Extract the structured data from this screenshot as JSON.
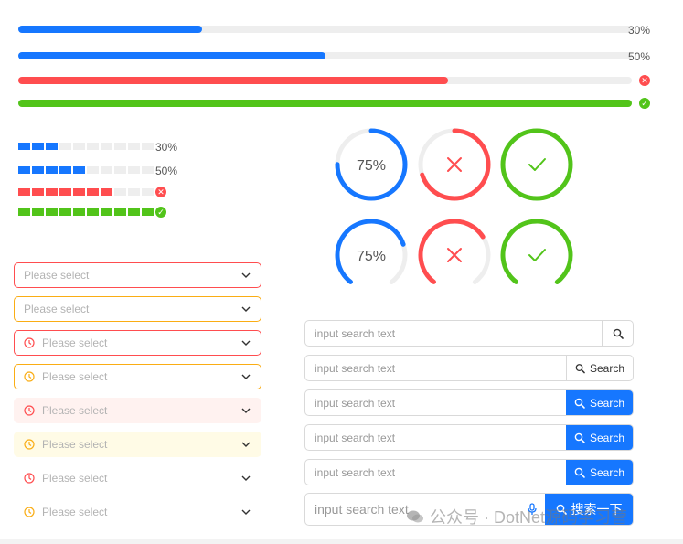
{
  "colors": {
    "primary": "#1677ff",
    "error": "#ff4d4f",
    "success": "#52c41a",
    "warning": "#faad14",
    "track": "#eeeeee"
  },
  "line_progress": [
    {
      "percent": 30,
      "status": "normal",
      "label": "30%"
    },
    {
      "percent": 50,
      "status": "normal",
      "label": "50%"
    },
    {
      "percent": 70,
      "status": "exception",
      "label": ""
    },
    {
      "percent": 100,
      "status": "success",
      "label": ""
    }
  ],
  "steps_progress": [
    {
      "steps": 10,
      "filled": 3,
      "status": "normal",
      "label": "30%"
    },
    {
      "steps": 10,
      "filled": 5,
      "status": "normal",
      "label": "50%"
    },
    {
      "steps": 10,
      "filled": 7,
      "status": "exception",
      "label": ""
    },
    {
      "steps": 10,
      "filled": 10,
      "status": "success",
      "label": ""
    }
  ],
  "circle_progress": [
    {
      "type": "circle",
      "percent": 75,
      "status": "normal",
      "label": "75%"
    },
    {
      "type": "circle",
      "percent": 70,
      "status": "exception",
      "label": ""
    },
    {
      "type": "circle",
      "percent": 100,
      "status": "success",
      "label": ""
    },
    {
      "type": "dashboard",
      "percent": 75,
      "status": "normal",
      "label": "75%"
    },
    {
      "type": "dashboard",
      "percent": 70,
      "status": "exception",
      "label": ""
    },
    {
      "type": "dashboard",
      "percent": 100,
      "status": "success",
      "label": ""
    }
  ],
  "selects": [
    {
      "placeholder": "Please select",
      "status": "error",
      "variant": "outlined",
      "prefix_icon": ""
    },
    {
      "placeholder": "Please select",
      "status": "warning",
      "variant": "outlined",
      "prefix_icon": ""
    },
    {
      "placeholder": "Please select",
      "status": "error",
      "variant": "outlined",
      "prefix_icon": "clock-icon"
    },
    {
      "placeholder": "Please select",
      "status": "warning",
      "variant": "outlined",
      "prefix_icon": "clock-icon"
    },
    {
      "placeholder": "Please select",
      "status": "error",
      "variant": "filled",
      "prefix_icon": "clock-icon"
    },
    {
      "placeholder": "Please select",
      "status": "warning",
      "variant": "filled",
      "prefix_icon": "clock-icon"
    },
    {
      "placeholder": "Please select",
      "status": "error",
      "variant": "borderless",
      "prefix_icon": "clock-icon"
    },
    {
      "placeholder": "Please select",
      "status": "warning",
      "variant": "borderless",
      "prefix_icon": "clock-icon"
    }
  ],
  "searches": [
    {
      "placeholder": "input search text",
      "button": "",
      "style": "icon-only"
    },
    {
      "placeholder": "input search text",
      "button": "Search",
      "style": "default"
    },
    {
      "placeholder": "input search text",
      "button": "Search",
      "style": "primary"
    },
    {
      "placeholder": "input search text",
      "button": "Search",
      "style": "primary"
    },
    {
      "placeholder": "input search text",
      "button": "Search",
      "style": "primary"
    },
    {
      "placeholder": "input search text",
      "button": "搜索一下",
      "style": "primary-large",
      "suffix_icon": "microphone-icon"
    }
  ],
  "watermark": {
    "text": "公众号 · DotNet源码学习营",
    "icon": "wechat-icon"
  }
}
